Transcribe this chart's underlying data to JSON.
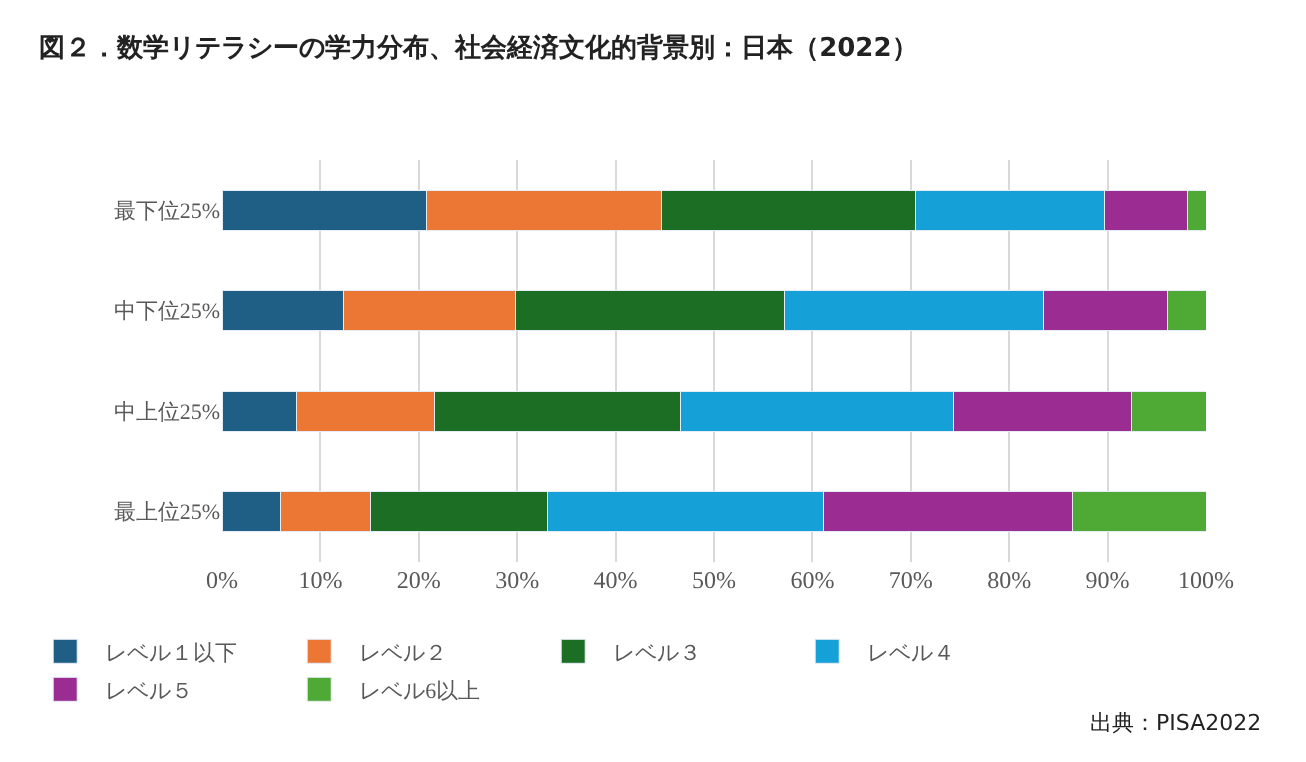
{
  "chart_data": {
    "type": "bar",
    "orientation": "horizontal",
    "stacked": true,
    "title": "図２．数学リテラシーの学力分布、社会経済文化的背景別：日本（2022）",
    "categories": [
      "最下位25%",
      "中下位25%",
      "中上位25%",
      "最上位25%"
    ],
    "series": [
      {
        "name": "レベル１以下",
        "color": "#1f5f86",
        "values": [
          20.8,
          12.3,
          7.6,
          5.9
        ]
      },
      {
        "name": "レベル２",
        "color": "#ec7634",
        "values": [
          23.9,
          17.5,
          14.0,
          9.2
        ]
      },
      {
        "name": "レベル３",
        "color": "#1c6e24",
        "values": [
          25.8,
          27.4,
          25.0,
          18.0
        ]
      },
      {
        "name": "レベル４",
        "color": "#16a0d8",
        "values": [
          19.2,
          26.3,
          27.7,
          28.0
        ]
      },
      {
        "name": "レベル５",
        "color": "#9b2d92",
        "values": [
          8.4,
          12.6,
          18.1,
          25.3
        ]
      },
      {
        "name": "レベル6以上",
        "color": "#4ea935",
        "values": [
          1.9,
          3.9,
          7.6,
          13.6
        ]
      }
    ],
    "xlim": [
      0,
      100
    ],
    "xticks": [
      {
        "value": 0,
        "label": "0%"
      },
      {
        "value": 10,
        "label": "10%"
      },
      {
        "value": 20,
        "label": "20%"
      },
      {
        "value": 30,
        "label": "30%"
      },
      {
        "value": 40,
        "label": "40%"
      },
      {
        "value": 50,
        "label": "50%"
      },
      {
        "value": 60,
        "label": "60%"
      },
      {
        "value": 70,
        "label": "70%"
      },
      {
        "value": 80,
        "label": "80%"
      },
      {
        "value": 90,
        "label": "90%"
      },
      {
        "value": 100,
        "label": "100%"
      }
    ],
    "grid": "x",
    "legend": "bottom",
    "annotations": [
      "出典：PISA2022"
    ]
  }
}
